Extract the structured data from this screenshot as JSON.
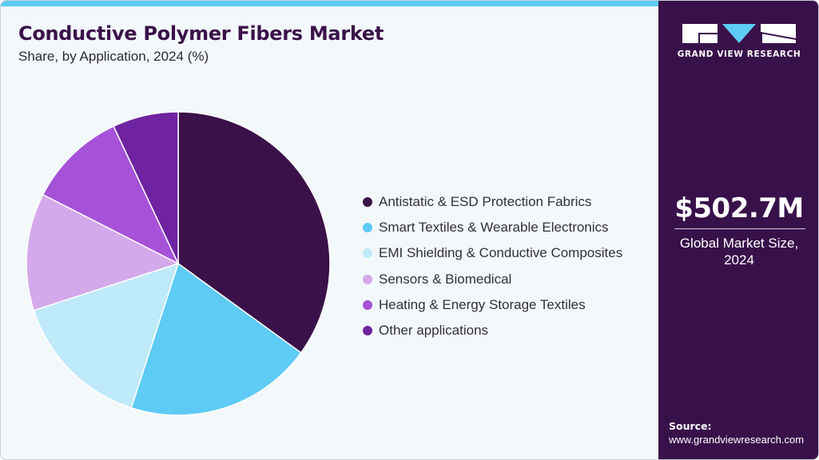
{
  "header": {
    "title": "Conductive Polymer Fibers Market",
    "subtitle": "Share, by Application, 2024 (%)"
  },
  "legend": {
    "items": [
      {
        "label": "Antistatic & ESD Protection Fabrics",
        "color": "#3a1249"
      },
      {
        "label": "Smart Textiles & Wearable Electronics",
        "color": "#5ecbf5"
      },
      {
        "label": "EMI Shielding & Conductive Composites",
        "color": "#bfeaf9"
      },
      {
        "label": "Sensors & Biomedical",
        "color": "#d4a9ec"
      },
      {
        "label": "Heating & Energy Storage Textiles",
        "color": "#a652d8"
      },
      {
        "label": "Other applications",
        "color": "#6f23a0"
      }
    ]
  },
  "sidebar": {
    "logo_text": "GRAND VIEW RESEARCH",
    "market_value": "$502.7M",
    "market_label_line1": "Global Market Size,",
    "market_label_line2": "2024",
    "source_label": "Source:",
    "source_url": "www.grandviewresearch.com"
  },
  "colors": {
    "accent_bar": "#5ecbf5",
    "sidebar_bg": "#38114a",
    "title": "#3a1249",
    "background": "#f3f8fb"
  },
  "chart_data": {
    "type": "pie",
    "title": "Conductive Polymer Fibers Market",
    "subtitle": "Share, by Application, 2024 (%)",
    "categories": [
      "Antistatic & ESD Protection Fabrics",
      "Smart Textiles & Wearable Electronics",
      "EMI Shielding & Conductive Composites",
      "Sensors & Biomedical",
      "Heating & Energy Storage Textiles",
      "Other applications"
    ],
    "values": [
      35,
      20,
      15,
      12.5,
      10.5,
      7
    ],
    "colors": [
      "#3a1249",
      "#5ecbf5",
      "#bfeaf9",
      "#d4a9ec",
      "#a652d8",
      "#6f23a0"
    ],
    "start_angle_deg": 0,
    "direction": "clockwise",
    "legend_position": "right",
    "data_labels": false
  }
}
